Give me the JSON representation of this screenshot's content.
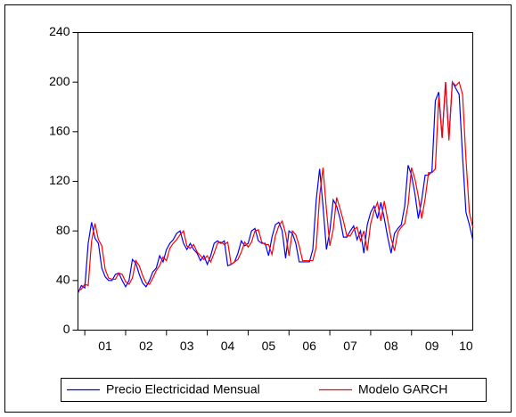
{
  "chart_data": {
    "type": "line",
    "categories": [
      null,
      null,
      null,
      null,
      null,
      null,
      null,
      null,
      "01",
      null,
      null,
      null,
      null,
      null,
      null,
      null,
      null,
      null,
      null,
      null,
      "02",
      null,
      null,
      null,
      null,
      null,
      null,
      null,
      null,
      null,
      null,
      null,
      "03",
      null,
      null,
      null,
      null,
      null,
      null,
      null,
      null,
      null,
      null,
      null,
      "04",
      null,
      null,
      null,
      null,
      null,
      null,
      null,
      null,
      null,
      null,
      null,
      "05",
      null,
      null,
      null,
      null,
      null,
      null,
      null,
      null,
      null,
      null,
      null,
      "06",
      null,
      null,
      null,
      null,
      null,
      null,
      null,
      null,
      null,
      null,
      null,
      "07",
      null,
      null,
      null,
      null,
      null,
      null,
      null,
      null,
      null,
      null,
      null,
      "08",
      null,
      null,
      null,
      null,
      null,
      null,
      null,
      null,
      null,
      null,
      null,
      "09",
      null,
      null,
      null,
      null,
      null,
      null,
      null,
      null,
      null,
      "10",
      null,
      null
    ],
    "series": [
      {
        "name": "Precio Electricidad Mensual",
        "color": "#0000ff",
        "values": [
          30,
          36,
          34,
          70,
          87,
          74,
          70,
          50,
          43,
          40,
          40,
          45,
          46,
          40,
          35,
          40,
          57,
          54,
          45,
          38,
          35,
          40,
          47,
          50,
          60,
          55,
          65,
          70,
          73,
          78,
          80,
          70,
          65,
          70,
          65,
          62,
          56,
          60,
          53,
          60,
          70,
          72,
          70,
          72,
          52,
          53,
          55,
          62,
          72,
          68,
          70,
          80,
          82,
          72,
          70,
          70,
          60,
          75,
          85,
          87,
          80,
          58,
          80,
          78,
          70,
          55,
          55,
          55,
          55,
          65,
          105,
          130,
          100,
          65,
          80,
          105,
          100,
          90,
          75,
          75,
          80,
          84,
          73,
          80,
          62,
          85,
          95,
          100,
          90,
          103,
          90,
          75,
          62,
          78,
          82,
          85,
          100,
          133,
          125,
          110,
          90,
          105,
          125,
          125,
          128,
          185,
          192,
          155,
          200,
          155,
          200,
          195,
          190,
          140,
          95,
          85,
          73
        ]
      },
      {
        "name": "Modelo GARCH",
        "color": "#ff0000",
        "values": [
          32,
          33,
          37,
          36,
          72,
          86,
          73,
          68,
          49,
          42,
          41,
          41,
          46,
          45,
          39,
          37,
          42,
          56,
          52,
          44,
          38,
          37,
          42,
          48,
          52,
          59,
          56,
          66,
          70,
          73,
          77,
          80,
          68,
          66,
          69,
          63,
          60,
          57,
          60,
          55,
          62,
          70,
          71,
          69,
          71,
          53,
          55,
          57,
          63,
          71,
          67,
          71,
          80,
          81,
          71,
          69,
          69,
          61,
          76,
          84,
          88,
          78,
          60,
          80,
          77,
          68,
          56,
          56,
          56,
          56,
          67,
          108,
          131,
          97,
          68,
          81,
          107,
          98,
          88,
          76,
          76,
          81,
          83,
          72,
          80,
          64,
          86,
          96,
          103,
          88,
          104,
          89,
          74,
          64,
          79,
          83,
          86,
          101,
          131,
          122,
          108,
          90,
          106,
          127,
          127,
          130,
          188,
          155,
          200,
          153,
          200,
          197,
          200,
          190,
          138,
          95,
          83
        ]
      }
    ],
    "ylim": [
      0,
      240
    ],
    "yticks": [
      0,
      40,
      80,
      120,
      160,
      200,
      240
    ]
  }
}
